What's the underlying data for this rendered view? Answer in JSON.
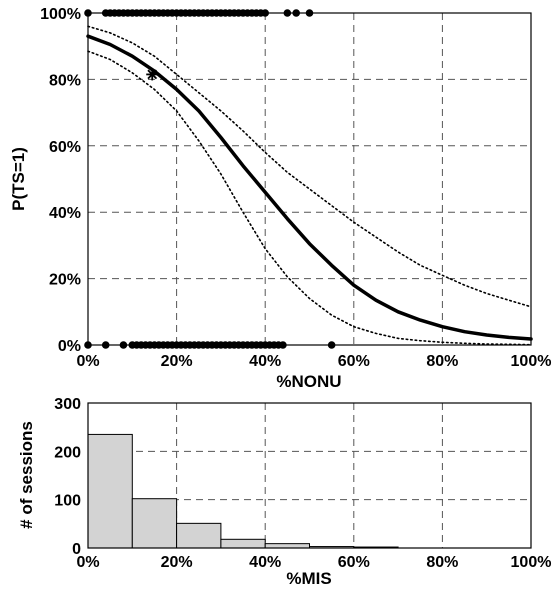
{
  "chart_data": [
    {
      "type": "line",
      "xlabel": "%NONU",
      "ylabel": "P(TS=1)",
      "xlim": [
        0,
        100
      ],
      "ylim": [
        0,
        100
      ],
      "xticks": [
        0,
        20,
        40,
        60,
        80,
        100
      ],
      "yticks": [
        0,
        20,
        40,
        60,
        80,
        100
      ],
      "xtick_labels": [
        "0%",
        "20%",
        "40%",
        "60%",
        "80%",
        "100%"
      ],
      "ytick_labels": [
        "0%",
        "20%",
        "40%",
        "60%",
        "80%",
        "100%"
      ],
      "grid": true,
      "series": [
        {
          "style": "solid-thick",
          "x": [
            0,
            5,
            10,
            15,
            20,
            25,
            30,
            35,
            40,
            45,
            50,
            55,
            60,
            65,
            70,
            75,
            80,
            85,
            90,
            95,
            100
          ],
          "y": [
            93,
            90.5,
            87,
            82.5,
            77,
            70.5,
            62.5,
            54,
            46,
            38,
            30.5,
            24,
            18,
            13.5,
            10,
            7.5,
            5.5,
            4,
            3,
            2.3,
            1.8
          ]
        },
        {
          "style": "dotted-upper",
          "x": [
            0,
            5,
            10,
            15,
            20,
            25,
            30,
            35,
            40,
            45,
            50,
            55,
            60,
            65,
            70,
            75,
            80,
            85,
            90,
            95,
            100
          ],
          "y": [
            96,
            94,
            91,
            87,
            81.5,
            76,
            70.5,
            64.5,
            58,
            52,
            47,
            42,
            37,
            32.5,
            28,
            24,
            21,
            18,
            15.5,
            13.5,
            11.5
          ]
        },
        {
          "style": "dotted-lower",
          "x": [
            0,
            5,
            10,
            15,
            20,
            25,
            30,
            35,
            40,
            45,
            50,
            55,
            60,
            65,
            70,
            75,
            80,
            85,
            90,
            95,
            100
          ],
          "y": [
            88.5,
            86,
            82,
            77,
            70.5,
            61.5,
            51.5,
            40,
            29,
            20.5,
            14,
            9,
            5.5,
            3.5,
            2,
            1.3,
            0.8,
            0.5,
            0.3,
            0.2,
            0.1
          ]
        }
      ],
      "points_top": [
        0,
        4,
        5,
        6,
        7,
        8,
        9,
        10,
        11,
        12,
        13,
        14,
        15,
        16,
        17,
        18,
        19,
        20,
        21,
        22,
        23,
        24,
        25,
        26,
        27,
        28,
        29,
        30,
        31,
        32,
        33,
        34,
        35,
        36,
        37,
        38,
        39,
        40,
        45,
        47,
        50
      ],
      "points_bottom": [
        0,
        4,
        8,
        10,
        11,
        12,
        13,
        14,
        15,
        16,
        17,
        18,
        19,
        20,
        21,
        22,
        23,
        24,
        25,
        26,
        27,
        28,
        29,
        30,
        31,
        32,
        33,
        34,
        35,
        36,
        37,
        38,
        39,
        40,
        41,
        42,
        43,
        44,
        55
      ],
      "marker": {
        "x": 14.5,
        "y": 81.5,
        "symbol": "*"
      }
    },
    {
      "type": "bar",
      "xlabel": "%MIS",
      "ylabel": "# of sessions",
      "xlim": [
        0,
        100
      ],
      "ylim": [
        0,
        300
      ],
      "xticks": [
        0,
        20,
        40,
        60,
        80,
        100
      ],
      "yticks": [
        0,
        100,
        200,
        300
      ],
      "xtick_labels": [
        "0%",
        "20%",
        "40%",
        "60%",
        "80%",
        "100%"
      ],
      "ytick_labels": [
        "0",
        "100",
        "200",
        "300"
      ],
      "grid": true,
      "bin_edges": [
        0,
        10,
        20,
        30,
        40,
        50,
        60,
        70,
        80,
        90,
        100
      ],
      "values": [
        235,
        102,
        51,
        18,
        9,
        3,
        2,
        0,
        0,
        0
      ]
    }
  ],
  "colors": {
    "bar_fill": "#d3d3d3",
    "line": "#000000",
    "grid": "#555555"
  }
}
